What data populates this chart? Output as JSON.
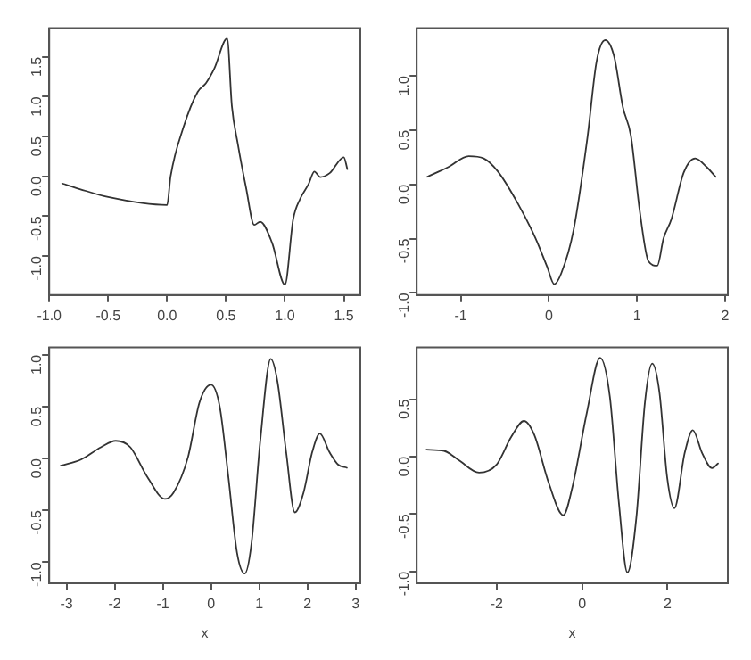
{
  "chart_data": [
    {
      "type": "line",
      "x": [
        -0.89,
        -0.74,
        -0.5,
        0.0,
        0.03,
        0.14,
        0.26,
        0.33,
        0.4,
        0.51,
        0.55,
        0.6,
        0.67,
        0.74,
        0.79,
        0.89,
        1.0,
        1.07,
        1.13,
        1.2,
        1.25,
        1.3,
        1.38,
        1.5,
        1.53
      ],
      "series": [
        {
          "color": "#333333",
          "values": [
            -0.09,
            -0.16,
            -0.26,
            -0.36,
            0.0,
            0.62,
            1.06,
            1.17,
            1.35,
            1.73,
            0.88,
            0.41,
            -0.14,
            -0.61,
            -0.57,
            -0.83,
            -1.36,
            -0.54,
            -0.28,
            -0.1,
            0.06,
            -0.01,
            0.04,
            0.24,
            0.09
          ]
        }
      ],
      "xlim": [
        -1.0,
        1.64
      ],
      "ylim": [
        -1.49,
        1.86
      ],
      "xticks": [
        {
          "value": -1,
          "label": "-1.0"
        },
        -0.5,
        {
          "value": 0,
          "label": "0.0"
        },
        0.5,
        {
          "value": 1,
          "label": "1.0"
        },
        1.5
      ],
      "yticks": [
        {
          "value": -1,
          "label": "-1.0"
        },
        -0.5,
        {
          "value": 0,
          "label": "0.0"
        },
        0.5,
        {
          "value": 1,
          "label": "1.0"
        },
        1.5
      ],
      "grid": false,
      "legend": false,
      "marker": "none",
      "line_style": "solid"
    },
    {
      "type": "line",
      "x": [
        -1.38,
        -1.14,
        -0.91,
        -0.74,
        -0.58,
        -0.35,
        -0.15,
        -0.02,
        0.06,
        0.14,
        0.28,
        0.44,
        0.54,
        0.64,
        0.74,
        0.84,
        0.93,
        1.03,
        1.13,
        1.23,
        1.3,
        1.39,
        1.53,
        1.66,
        1.79,
        1.89
      ],
      "series": [
        {
          "color": "#333333",
          "values": [
            0.07,
            0.16,
            0.26,
            0.24,
            0.12,
            -0.18,
            -0.5,
            -0.76,
            -0.92,
            -0.82,
            -0.42,
            0.45,
            1.13,
            1.33,
            1.18,
            0.71,
            0.45,
            -0.24,
            -0.71,
            -0.75,
            -0.5,
            -0.32,
            0.11,
            0.24,
            0.16,
            0.07
          ]
        }
      ],
      "xlim": [
        -1.5,
        2.03
      ],
      "ylim": [
        -1.02,
        1.44
      ],
      "xticks": [
        -1,
        0,
        1,
        2
      ],
      "yticks": [
        {
          "value": -1,
          "label": "-1.0"
        },
        -0.5,
        {
          "value": 0,
          "label": "0.0"
        },
        0.5,
        {
          "value": 1,
          "label": "1.0"
        }
      ],
      "grid": false,
      "legend": false,
      "marker": "none",
      "line_style": "solid"
    },
    {
      "type": "line",
      "xlabel": "x",
      "x": [
        -3.12,
        -2.7,
        -2.28,
        -1.98,
        -1.68,
        -1.32,
        -0.96,
        -0.78,
        -0.48,
        -0.24,
        0.0,
        0.18,
        0.36,
        0.54,
        0.7,
        0.84,
        1.02,
        1.24,
        1.38,
        1.56,
        1.74,
        1.92,
        2.1,
        2.26,
        2.46,
        2.64,
        2.82
      ],
      "series": [
        {
          "color": "#333333",
          "values": [
            -0.07,
            -0.01,
            0.11,
            0.17,
            0.11,
            -0.18,
            -0.39,
            -0.33,
            0.01,
            0.54,
            0.71,
            0.5,
            -0.18,
            -0.91,
            -1.11,
            -0.82,
            0.16,
            0.96,
            0.74,
            0.06,
            -0.52,
            -0.33,
            0.06,
            0.24,
            0.06,
            -0.06,
            -0.09
          ]
        }
      ],
      "xlim": [
        -3.36,
        3.1
      ],
      "ylim": [
        -1.2,
        1.07
      ],
      "xticks": [
        -3,
        -2,
        -1,
        0,
        1,
        2,
        3
      ],
      "yticks": [
        {
          "value": -1,
          "label": "-1.0"
        },
        -0.5,
        {
          "value": 0,
          "label": "0.0"
        },
        0.5,
        {
          "value": 1,
          "label": "1.0"
        }
      ],
      "grid": false,
      "legend": false,
      "marker": "none",
      "line_style": "solid"
    },
    {
      "type": "line",
      "xlabel": "x",
      "x": [
        -3.64,
        -3.23,
        -2.89,
        -2.41,
        -2.0,
        -1.66,
        -1.36,
        -1.12,
        -0.78,
        -0.44,
        -0.23,
        0.11,
        0.42,
        0.65,
        0.86,
        1.06,
        1.27,
        1.47,
        1.64,
        1.81,
        1.99,
        2.16,
        2.4,
        2.59,
        2.81,
        3.04,
        3.18
      ],
      "series": [
        {
          "color": "#333333",
          "values": [
            0.06,
            0.05,
            -0.03,
            -0.14,
            -0.07,
            0.17,
            0.31,
            0.19,
            -0.23,
            -0.51,
            -0.27,
            0.38,
            0.86,
            0.52,
            -0.4,
            -1.01,
            -0.53,
            0.47,
            0.81,
            0.56,
            -0.18,
            -0.45,
            0.03,
            0.23,
            0.03,
            -0.1,
            -0.06
          ]
        }
      ],
      "xlim": [
        -3.87,
        3.41
      ],
      "ylim": [
        -1.1,
        0.95
      ],
      "xticks": [
        -2,
        0,
        2
      ],
      "yticks": [
        {
          "value": -1,
          "label": "-1.0"
        },
        -0.5,
        {
          "value": 0,
          "label": "0.0"
        },
        0.5
      ],
      "grid": false,
      "legend": false,
      "marker": "none",
      "line_style": "solid"
    }
  ]
}
